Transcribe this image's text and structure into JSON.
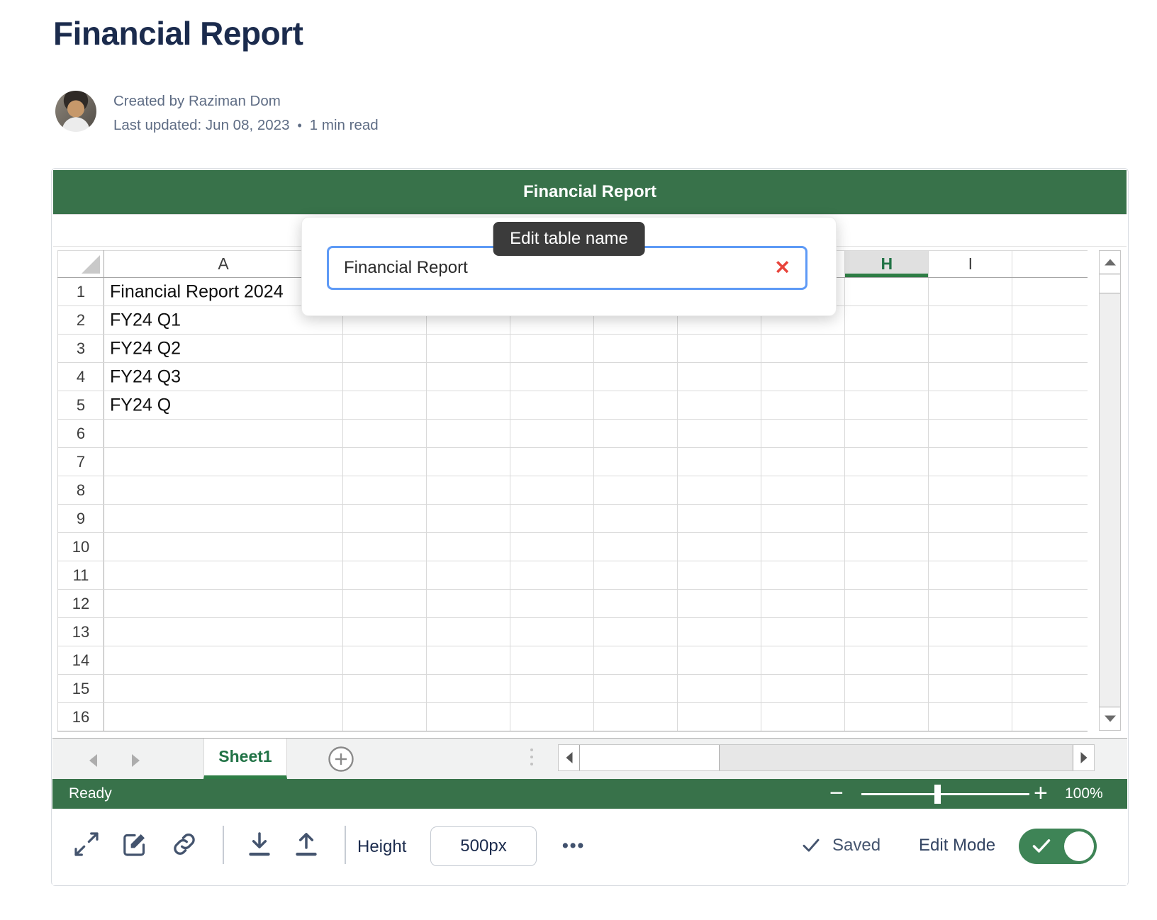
{
  "page": {
    "title": "Financial Report",
    "byline": {
      "created": "Created by Raziman Dom",
      "updated": "Last updated: Jun 08, 2023",
      "dot": "•",
      "read_time": "1 min read"
    }
  },
  "widget": {
    "title_bar_text": "Financial Report",
    "popup": {
      "tooltip_text": "Edit table name",
      "input_value": "Financial Report",
      "close_glyph": "✕"
    },
    "sheet": {
      "columns": [
        {
          "label": "A",
          "selected": false
        },
        {
          "label": "",
          "selected": false
        },
        {
          "label": "",
          "selected": false
        },
        {
          "label": "",
          "selected": false
        },
        {
          "label": "",
          "selected": false
        },
        {
          "label": "",
          "selected": false
        },
        {
          "label": "",
          "selected": false
        },
        {
          "label": "H",
          "selected": true
        },
        {
          "label": "I",
          "selected": false
        },
        {
          "label": "",
          "selected": false
        }
      ],
      "rows": [
        {
          "num": "1",
          "a": "Financial Report 2024"
        },
        {
          "num": "2",
          "a": "FY24 Q1"
        },
        {
          "num": "3",
          "a": "FY24 Q2"
        },
        {
          "num": "4",
          "a": "FY24 Q3"
        },
        {
          "num": "5",
          "a": "FY24 Q"
        },
        {
          "num": "6",
          "a": ""
        },
        {
          "num": "7",
          "a": ""
        },
        {
          "num": "8",
          "a": ""
        },
        {
          "num": "9",
          "a": ""
        },
        {
          "num": "10",
          "a": ""
        },
        {
          "num": "11",
          "a": ""
        },
        {
          "num": "12",
          "a": ""
        },
        {
          "num": "13",
          "a": ""
        },
        {
          "num": "14",
          "a": ""
        },
        {
          "num": "15",
          "a": ""
        },
        {
          "num": "16",
          "a": ""
        }
      ]
    },
    "tab_bar": {
      "sheet_tab_label": "Sheet1"
    },
    "status_bar": {
      "status_text": "Ready",
      "zoom_out_glyph": "−",
      "zoom_in_glyph": "+",
      "zoom_level": "100%"
    },
    "footer": {
      "height_label": "Height",
      "height_value": "500px",
      "more_glyph": "•••",
      "saved_label": "Saved",
      "edit_mode_label": "Edit Mode"
    }
  },
  "colors": {
    "excel_green": "#38724A",
    "selection_green": "#217346",
    "tab_underline_green": "#2E7D45",
    "toggle_green": "#3E8456",
    "input_focus_blue": "#5E9AF6",
    "close_red": "#E8443B",
    "title_navy": "#1B2B4D",
    "icon_slate": "#44546E"
  }
}
